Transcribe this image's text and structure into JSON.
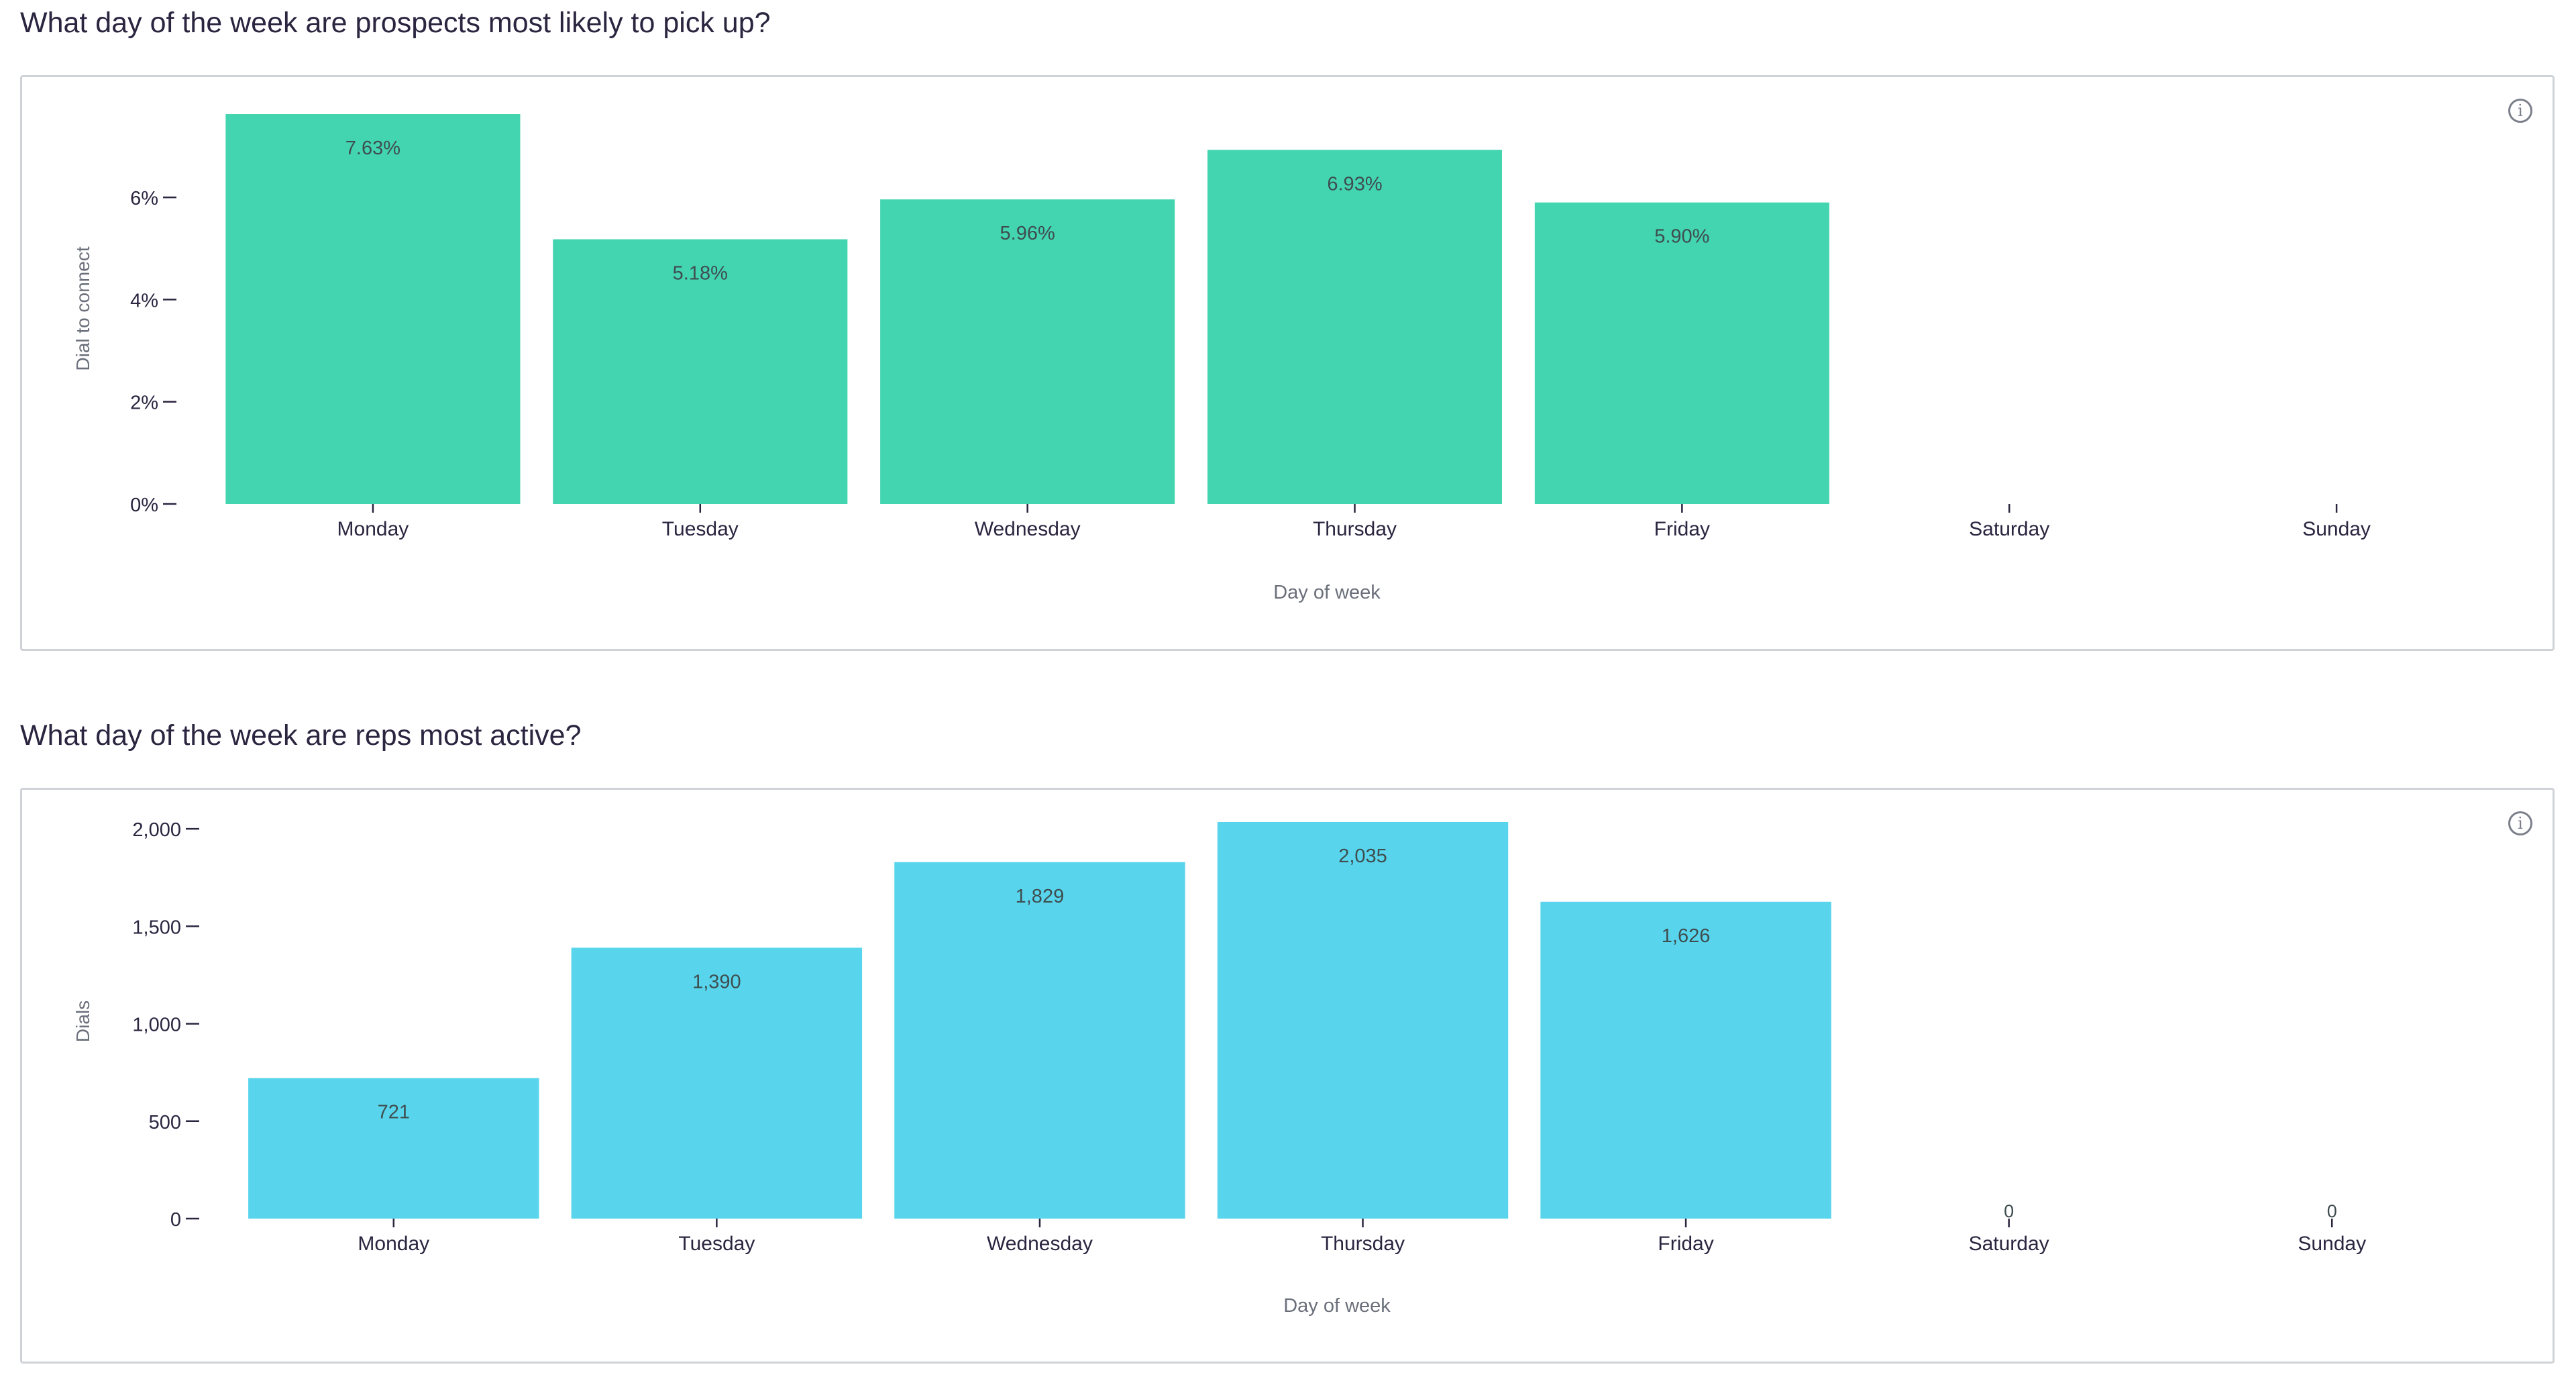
{
  "sections": [
    {
      "title": "What day of the week are prospects most likely to pick up?",
      "info_icon": "info-icon"
    },
    {
      "title": "What day of the week are reps most active?",
      "info_icon": "info-icon"
    }
  ],
  "colors": {
    "chart1_bar": "#43d4b0",
    "chart2_bar": "#58d5ec",
    "axis": "#2b2540",
    "value_label": "#3f4d4f",
    "card_border": "#cfd3d7"
  },
  "chart_data": [
    {
      "type": "bar",
      "title": "What day of the week are prospects most likely to pick up?",
      "xlabel": "Day of week",
      "ylabel": "Dial to connect",
      "categories": [
        "Monday",
        "Tuesday",
        "Wednesday",
        "Thursday",
        "Friday",
        "Saturday",
        "Sunday"
      ],
      "values": [
        7.63,
        5.18,
        5.96,
        6.93,
        5.9,
        null,
        null
      ],
      "value_labels": [
        "7.63%",
        "5.18%",
        "5.96%",
        "6.93%",
        "5.90%",
        "",
        ""
      ],
      "yticks": [
        0,
        2,
        4,
        6
      ],
      "ytick_labels": [
        "0%",
        "2%",
        "4%",
        "6%"
      ],
      "ylim": [
        0,
        7.63
      ],
      "grid": false,
      "legend": "none"
    },
    {
      "type": "bar",
      "title": "What day of the week are reps most active?",
      "xlabel": "Day of week",
      "ylabel": "Dials",
      "categories": [
        "Monday",
        "Tuesday",
        "Wednesday",
        "Thursday",
        "Friday",
        "Saturday",
        "Sunday"
      ],
      "values": [
        721,
        1390,
        1829,
        2035,
        1626,
        0,
        0
      ],
      "value_labels": [
        "721",
        "1,390",
        "1,829",
        "2,035",
        "1,626",
        "0",
        "0"
      ],
      "yticks": [
        0,
        500,
        1000,
        1500,
        2000
      ],
      "ytick_labels": [
        "0",
        "500",
        "1,000",
        "1,500",
        "2,000"
      ],
      "ylim": [
        0,
        2035
      ],
      "grid": false,
      "legend": "none"
    }
  ]
}
